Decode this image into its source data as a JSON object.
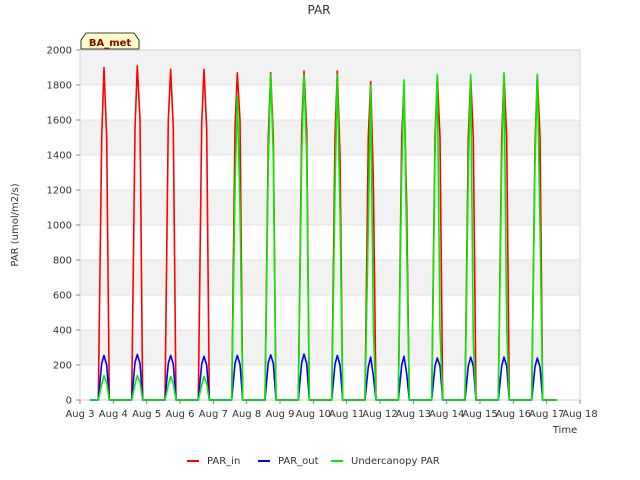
{
  "chart_data": {
    "type": "line",
    "title": "PAR",
    "xlabel": "Time",
    "ylabel": "PAR (umol/m2/s)",
    "site_label": "BA_met",
    "ylim": [
      0,
      2000
    ],
    "yticks": [
      0,
      200,
      400,
      600,
      800,
      1000,
      1200,
      1400,
      1600,
      1800,
      2000
    ],
    "xlim": [
      3,
      18
    ],
    "xticks": [
      {
        "value": 3,
        "label": "Aug 3"
      },
      {
        "value": 4,
        "label": "Aug 4"
      },
      {
        "value": 5,
        "label": "Aug 5"
      },
      {
        "value": 6,
        "label": "Aug 6"
      },
      {
        "value": 7,
        "label": "Aug 7"
      },
      {
        "value": 8,
        "label": "Aug 8"
      },
      {
        "value": 9,
        "label": "Aug 9"
      },
      {
        "value": 10,
        "label": "Aug 10"
      },
      {
        "value": 11,
        "label": "Aug 11"
      },
      {
        "value": 12,
        "label": "Aug 12"
      },
      {
        "value": 13,
        "label": "Aug 13"
      },
      {
        "value": 14,
        "label": "Aug 14"
      },
      {
        "value": 15,
        "label": "Aug 15"
      },
      {
        "value": 16,
        "label": "Aug 16"
      },
      {
        "value": 17,
        "label": "Aug 17"
      },
      {
        "value": 18,
        "label": "Aug 18"
      }
    ],
    "grid": true,
    "legend_position": "bottom",
    "series": [
      {
        "name": "PAR_in",
        "color": "#ff0000",
        "x": [
          3.3,
          3.55,
          3.65,
          3.72,
          3.8,
          3.88,
          4.05,
          4.3,
          4.55,
          4.65,
          4.72,
          4.8,
          4.88,
          5.05,
          5.3,
          5.55,
          5.65,
          5.72,
          5.8,
          5.88,
          6.05,
          6.3,
          6.55,
          6.65,
          6.72,
          6.8,
          6.88,
          7.05,
          7.3,
          7.55,
          7.65,
          7.72,
          7.8,
          7.88,
          8.05,
          8.3,
          8.55,
          8.65,
          8.72,
          8.8,
          8.88,
          9.05,
          9.3,
          9.55,
          9.65,
          9.72,
          9.8,
          9.88,
          10.05,
          10.3,
          10.55,
          10.65,
          10.72,
          10.8,
          10.88,
          11.05,
          11.3,
          11.55,
          11.65,
          11.72,
          11.8,
          11.88,
          12.05,
          12.3,
          12.55,
          12.65,
          12.72,
          12.8,
          12.88,
          13.05,
          13.3,
          13.55,
          13.65,
          13.72,
          13.8,
          13.88,
          14.05,
          14.3,
          14.55,
          14.65,
          14.72,
          14.8,
          14.88,
          15.05,
          15.3,
          15.55,
          15.65,
          15.72,
          15.8,
          15.88,
          16.05,
          16.3,
          16.55,
          16.65,
          16.72,
          16.8,
          16.88,
          17.05,
          17.3
        ],
        "y": [
          0,
          0,
          1500,
          1900,
          1500,
          0,
          0,
          0,
          0,
          1550,
          1910,
          1600,
          0,
          0,
          0,
          0,
          1600,
          1890,
          1550,
          0,
          0,
          0,
          0,
          1580,
          1890,
          1550,
          0,
          0,
          0,
          0,
          1550,
          1870,
          1600,
          0,
          0,
          0,
          0,
          1500,
          1870,
          1500,
          0,
          0,
          0,
          0,
          1550,
          1880,
          1550,
          0,
          0,
          0,
          0,
          1500,
          1880,
          1400,
          0,
          0,
          0,
          0,
          1500,
          1820,
          1270,
          0,
          0,
          0,
          0,
          1500,
          1800,
          1100,
          0,
          0,
          0,
          0,
          1500,
          1850,
          1500,
          0,
          0,
          0,
          0,
          1500,
          1850,
          1500,
          0,
          0,
          0,
          0,
          1500,
          1860,
          1500,
          0,
          0,
          0,
          0,
          1450,
          1860,
          1500,
          0,
          0,
          0
        ]
      },
      {
        "name": "PAR_out",
        "color": "#0000ff",
        "x": [
          3.3,
          3.55,
          3.65,
          3.72,
          3.8,
          3.88,
          4.05,
          4.3,
          4.55,
          4.65,
          4.72,
          4.8,
          4.88,
          5.05,
          5.3,
          5.55,
          5.65,
          5.72,
          5.8,
          5.88,
          6.05,
          6.3,
          6.55,
          6.65,
          6.72,
          6.8,
          6.88,
          7.05,
          7.3,
          7.55,
          7.65,
          7.72,
          7.8,
          7.88,
          8.05,
          8.3,
          8.55,
          8.65,
          8.72,
          8.8,
          8.88,
          9.05,
          9.3,
          9.55,
          9.65,
          9.72,
          9.8,
          9.88,
          10.05,
          10.3,
          10.55,
          10.65,
          10.72,
          10.8,
          10.88,
          11.05,
          11.3,
          11.55,
          11.65,
          11.72,
          11.8,
          11.88,
          12.05,
          12.3,
          12.55,
          12.65,
          12.72,
          12.8,
          12.88,
          13.05,
          13.3,
          13.55,
          13.65,
          13.72,
          13.8,
          13.88,
          14.05,
          14.3,
          14.55,
          14.65,
          14.72,
          14.8,
          14.88,
          15.05,
          15.3,
          15.55,
          15.65,
          15.72,
          15.8,
          15.88,
          16.05,
          16.3,
          16.55,
          16.65,
          16.72,
          16.8,
          16.88,
          17.05,
          17.3
        ],
        "y": [
          0,
          0,
          210,
          255,
          200,
          0,
          0,
          0,
          0,
          215,
          260,
          210,
          0,
          0,
          0,
          0,
          210,
          255,
          205,
          0,
          0,
          0,
          0,
          205,
          250,
          200,
          0,
          0,
          0,
          0,
          210,
          255,
          205,
          0,
          0,
          0,
          0,
          215,
          258,
          210,
          0,
          0,
          0,
          0,
          215,
          262,
          210,
          0,
          0,
          0,
          0,
          205,
          255,
          200,
          0,
          0,
          0,
          0,
          190,
          245,
          140,
          0,
          0,
          0,
          0,
          200,
          250,
          150,
          0,
          0,
          0,
          0,
          195,
          240,
          195,
          0,
          0,
          0,
          0,
          195,
          245,
          195,
          0,
          0,
          0,
          0,
          195,
          245,
          195,
          0,
          0,
          0,
          0,
          190,
          240,
          190,
          0,
          0,
          0
        ]
      },
      {
        "name": "Undercanopy PAR",
        "color": "#00ee00",
        "x": [
          3.3,
          3.55,
          3.65,
          3.72,
          3.8,
          3.88,
          4.05,
          4.3,
          4.55,
          4.65,
          4.72,
          4.8,
          4.88,
          5.05,
          5.3,
          5.55,
          5.65,
          5.72,
          5.8,
          5.88,
          6.05,
          6.3,
          6.55,
          6.65,
          6.72,
          6.8,
          6.88,
          7.05,
          7.3,
          7.55,
          7.65,
          7.72,
          7.8,
          7.88,
          8.05,
          8.3,
          8.55,
          8.65,
          8.72,
          8.8,
          8.88,
          9.05,
          9.3,
          9.55,
          9.65,
          9.72,
          9.8,
          9.88,
          10.05,
          10.3,
          10.55,
          10.65,
          10.72,
          10.8,
          10.88,
          11.05,
          11.3,
          11.55,
          11.65,
          11.72,
          11.8,
          11.88,
          12.05,
          12.3,
          12.55,
          12.65,
          12.72,
          12.8,
          12.88,
          13.05,
          13.3,
          13.55,
          13.65,
          13.72,
          13.8,
          13.88,
          14.05,
          14.3,
          14.55,
          14.65,
          14.72,
          14.8,
          14.88,
          15.05,
          15.3,
          15.55,
          15.65,
          15.72,
          15.8,
          15.88,
          16.05,
          16.3,
          16.55,
          16.65,
          16.72,
          16.8,
          16.88,
          17.05,
          17.3
        ],
        "y": [
          0,
          0,
          90,
          140,
          100,
          0,
          0,
          0,
          0,
          90,
          140,
          100,
          0,
          0,
          0,
          0,
          85,
          135,
          95,
          0,
          0,
          0,
          0,
          85,
          135,
          95,
          0,
          0,
          0,
          0,
          1200,
          1740,
          1100,
          0,
          0,
          0,
          0,
          1350,
          1860,
          1400,
          0,
          0,
          0,
          0,
          1400,
          1860,
          1400,
          0,
          0,
          0,
          0,
          1200,
          1860,
          1080,
          0,
          0,
          0,
          0,
          1000,
          1800,
          420,
          0,
          0,
          0,
          0,
          1300,
          1830,
          900,
          0,
          0,
          0,
          0,
          1400,
          1860,
          400,
          0,
          0,
          0,
          0,
          1300,
          1860,
          330,
          0,
          0,
          0,
          0,
          1350,
          1870,
          420,
          0,
          0,
          0,
          0,
          1350,
          1860,
          1000,
          0,
          0,
          0
        ]
      }
    ]
  }
}
